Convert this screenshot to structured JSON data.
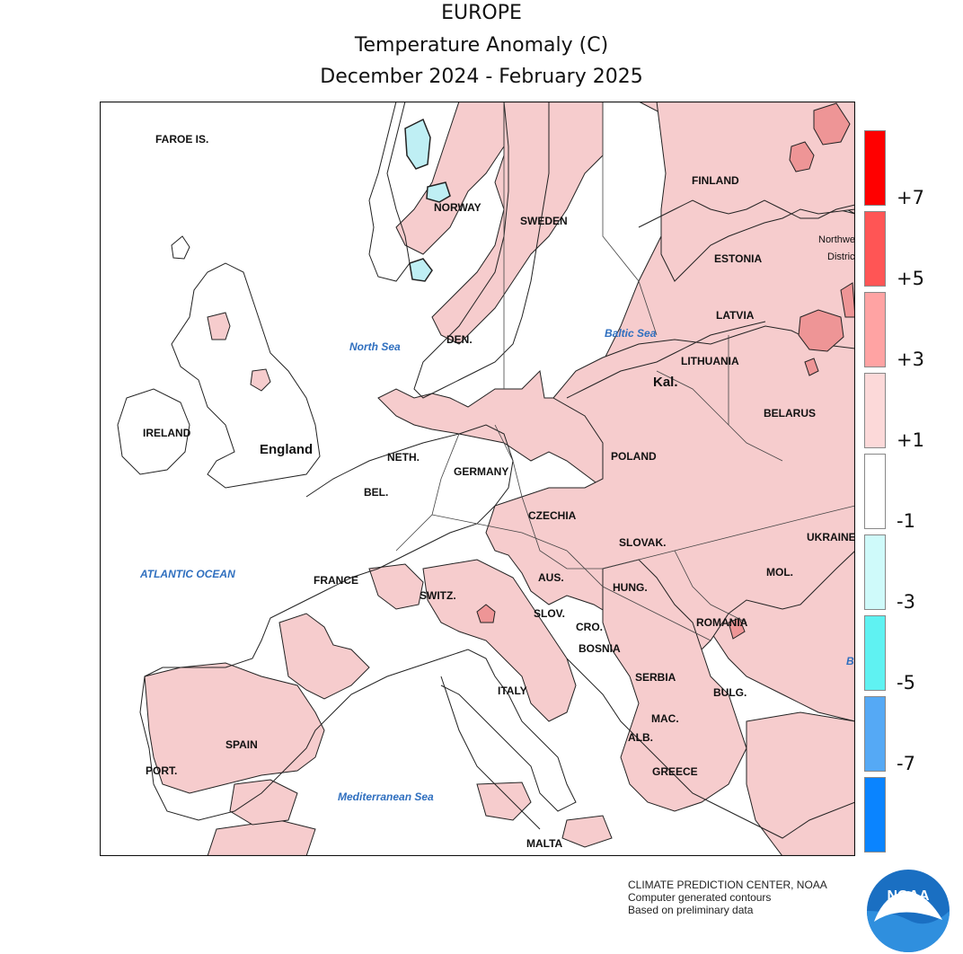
{
  "header": {
    "region": "EUROPE",
    "variable": "Temperature Anomaly (C)",
    "period": "December 2024 - February 2025"
  },
  "legend": {
    "bins": [
      {
        "color": "#ff0000"
      },
      {
        "color": "#ff5555"
      },
      {
        "color": "#ffa3a3"
      },
      {
        "color": "#fcd9d9"
      },
      {
        "color": "#ffffff"
      },
      {
        "color": "#cffafa"
      },
      {
        "color": "#5ff2f2"
      },
      {
        "color": "#55a9f5"
      },
      {
        "color": "#0a84ff"
      }
    ],
    "ticks": [
      "+7",
      "+5",
      "+3",
      "+1",
      "-1",
      "-3",
      "-5",
      "-7"
    ]
  },
  "map": {
    "country_labels": [
      "FAROE IS.",
      "NORWAY",
      "SWEDEN",
      "FINLAND",
      "ESTONIA",
      "LATVIA",
      "LITHUANIA",
      "Kal.",
      "BELARUS",
      "POLAND",
      "DEN.",
      "IRELAND",
      "England",
      "NETH.",
      "GERMANY",
      "BEL.",
      "CZECHIA",
      "SLOVAK.",
      "UKRAINE",
      "FRANCE",
      "SWITZ.",
      "AUS.",
      "HUNG.",
      "MOL.",
      "ROMANIA",
      "SLOV.",
      "CRO.",
      "BOSNIA",
      "SERBIA",
      "BULG.",
      "MAC.",
      "ALB.",
      "GREECE",
      "ITALY",
      "SPAIN",
      "PORT.",
      "MALTA",
      "Northwest",
      "District"
    ],
    "sea_labels": [
      "North Sea",
      "ATLANTIC OCEAN",
      "Baltic Sea",
      "Mediterranean Sea",
      "B"
    ]
  },
  "credits": {
    "line1": "CLIMATE PREDICTION CENTER, NOAA",
    "line2": "Computer generated contours",
    "line3": "Based on preliminary data"
  },
  "logo": {
    "text": "NOAA",
    "icon": "noaa-logo-icon"
  }
}
